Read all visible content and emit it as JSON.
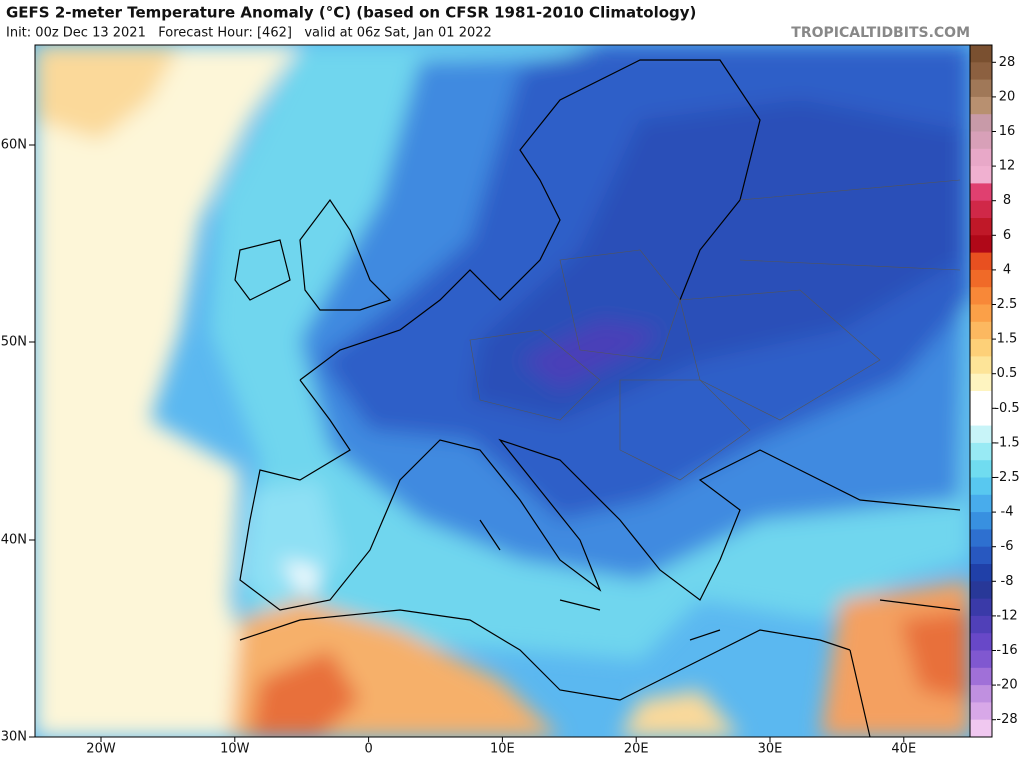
{
  "header": {
    "title": "GEFS 2-meter Temperature Anomaly (°C) (based on CFSR 1981-2010 Climatology)",
    "subtitle": "Init: 00z Dec 13 2021   Forecast Hour: [462]   valid at 06z Sat, Jan 01 2022",
    "credit": "TROPICALTIDBITS.COM"
  },
  "map": {
    "lat_labels": [
      "60N",
      "50N",
      "40N",
      "30N"
    ],
    "lon_labels": [
      "20W",
      "10W",
      "0",
      "10E",
      "20E",
      "30E",
      "40E"
    ]
  },
  "colorbar": {
    "labels": [
      "28",
      "20",
      "16",
      "12",
      "8",
      "6",
      "4",
      "2.5",
      "1.5",
      "0.5",
      "-0.5",
      "-1.5",
      "-2.5",
      "-4",
      "-6",
      "-8",
      "-12",
      "-16",
      "-20",
      "-28"
    ]
  }
}
